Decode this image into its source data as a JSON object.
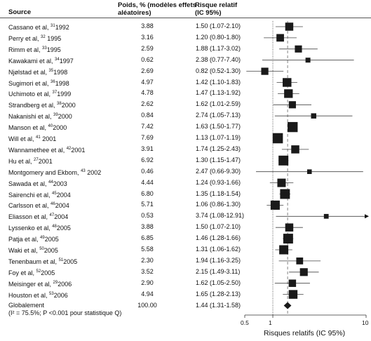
{
  "headers": {
    "source": "Source",
    "weight": "Poids, % (modèles effets aléatoires)",
    "rr": "Risque relatif (IC 95%)"
  },
  "studies": [
    {
      "author": "Cassano et al, ",
      "ref": "31",
      "year": "1992",
      "weight": "3.88",
      "rr_text": "1.50 (1.07-2.10)",
      "rr": 1.5,
      "lo": 1.07,
      "hi": 2.1
    },
    {
      "author": "Perry et al, ",
      "ref": "32",
      "year": " 1995",
      "weight": "3.16",
      "rr_text": "1.20 (0.80-1.80)",
      "rr": 1.2,
      "lo": 0.8,
      "hi": 1.8
    },
    {
      "author": "Rimm et al, ",
      "ref": "33",
      "year": "1995",
      "weight": "2.59",
      "rr_text": "1.88 (1.17-3.02)",
      "rr": 1.88,
      "lo": 1.17,
      "hi": 3.02
    },
    {
      "author": "Kawakami et al, ",
      "ref": "34",
      "year": "1997",
      "weight": "0.62",
      "rr_text": "2.38 (0.77-7.40)",
      "rr": 2.38,
      "lo": 0.77,
      "hi": 7.4
    },
    {
      "author": "Njølstad et al, ",
      "ref": "35",
      "year": "1998",
      "weight": "2.69",
      "rr_text": "0.82 (0.52-1.30)",
      "rr": 0.82,
      "lo": 0.52,
      "hi": 1.3
    },
    {
      "author": "Sugimori et al, ",
      "ref": "36",
      "year": "1998",
      "weight": "4.97",
      "rr_text": "1.42 (1.10-1.83)",
      "rr": 1.42,
      "lo": 1.1,
      "hi": 1.83
    },
    {
      "author": "Uchimoto et al, ",
      "ref": "37",
      "year": "1999",
      "weight": "4.78",
      "rr_text": "1.47 (1.13-1.92)",
      "rr": 1.47,
      "lo": 1.13,
      "hi": 1.92
    },
    {
      "author": "Strandberg et al, ",
      "ref": "38",
      "year": "2000",
      "weight": "2.62",
      "rr_text": "1.62 (1.01-2.59)",
      "rr": 1.62,
      "lo": 1.01,
      "hi": 2.59
    },
    {
      "author": "Nakanishi et al, ",
      "ref": "39",
      "year": "2000",
      "weight": "0.84",
      "rr_text": "2.74 (1.05-7.13)",
      "rr": 2.74,
      "lo": 1.05,
      "hi": 7.13
    },
    {
      "author": "Manson et al, ",
      "ref": "40",
      "year": "2000",
      "weight": "7.42",
      "rr_text": "1.63 (1.50-1.77)",
      "rr": 1.63,
      "lo": 1.5,
      "hi": 1.77
    },
    {
      "author": "Will et al, ",
      "ref": "41",
      "year": " 2001",
      "weight": "7.69",
      "rr_text": "1.13 (1.07-1.19)",
      "rr": 1.13,
      "lo": 1.07,
      "hi": 1.19
    },
    {
      "author": "Wannamethee et al, ",
      "ref": "42",
      "year": "2001",
      "weight": "3.91",
      "rr_text": "1.74 (1.25-2.43)",
      "rr": 1.74,
      "lo": 1.25,
      "hi": 2.43
    },
    {
      "author": "Hu et al, ",
      "ref": "27",
      "year": "2001",
      "weight": "6.92",
      "rr_text": "1.30 (1.15-1.47)",
      "rr": 1.3,
      "lo": 1.15,
      "hi": 1.47
    },
    {
      "author": "Montgomery and Ekbom, ",
      "ref": "43",
      "year": " 2002",
      "weight": "0.46",
      "rr_text": "2.47 (0.66-9.30)",
      "rr": 2.47,
      "lo": 0.66,
      "hi": 9.3
    },
    {
      "author": "Sawada et al, ",
      "ref": "44",
      "year": "2003",
      "weight": "4.44",
      "rr_text": "1.24 (0.93-1.66)",
      "rr": 1.24,
      "lo": 0.93,
      "hi": 1.66
    },
    {
      "author": "Sairenchi et al, ",
      "ref": "45",
      "year": "2004",
      "weight": "6.80",
      "rr_text": "1.35 (1.18-1.54)",
      "rr": 1.35,
      "lo": 1.18,
      "hi": 1.54
    },
    {
      "author": "Carlsson et al, ",
      "ref": "46",
      "year": "2004",
      "weight": "5.71",
      "rr_text": "1.06 (0.86-1.30)",
      "rr": 1.06,
      "lo": 0.86,
      "hi": 1.3
    },
    {
      "author": "Eliasson et al, ",
      "ref": "47",
      "year": "2004",
      "weight": "0.53",
      "rr_text": "3.74 (1.08-12.91)",
      "rr": 3.74,
      "lo": 1.08,
      "hi": 12.91
    },
    {
      "author": "Lyssenko et al, ",
      "ref": "48",
      "year": "2005",
      "weight": "3.88",
      "rr_text": "1.50 (1.07-2.10)",
      "rr": 1.5,
      "lo": 1.07,
      "hi": 2.1
    },
    {
      "author": "Patja et al, ",
      "ref": "49",
      "year": "2005",
      "weight": "6.85",
      "rr_text": "1.46 (1.28-1.66)",
      "rr": 1.46,
      "lo": 1.28,
      "hi": 1.66
    },
    {
      "author": "Waki et al, ",
      "ref": "50",
      "year": "2005",
      "weight": "5.58",
      "rr_text": "1.31 (1.06-1.62)",
      "rr": 1.31,
      "lo": 1.06,
      "hi": 1.62
    },
    {
      "author": "Tenenbaum et al, ",
      "ref": "51",
      "year": "2005",
      "weight": "2.30",
      "rr_text": "1.94 (1.16-3.25)",
      "rr": 1.94,
      "lo": 1.16,
      "hi": 3.25
    },
    {
      "author": "Foy et al, ",
      "ref": "52",
      "year": "2005",
      "weight": "3.52",
      "rr_text": "2.15 (1.49-3.11)",
      "rr": 2.15,
      "lo": 1.49,
      "hi": 3.11
    },
    {
      "author": "Meisinger et al, ",
      "ref": "29",
      "year": "2006",
      "weight": "2.90",
      "rr_text": "1.62 (1.05-2.50)",
      "rr": 1.62,
      "lo": 1.05,
      "hi": 2.5
    },
    {
      "author": "Houston et al, ",
      "ref": "53",
      "year": "2006",
      "weight": "4.94",
      "rr_text": "1.65 (1.28-2.13)",
      "rr": 1.65,
      "lo": 1.28,
      "hi": 2.13
    }
  ],
  "overall": {
    "label": "Globalement",
    "weight": "100.00",
    "rr_text": "1.44 (1.31-1.58)",
    "rr": 1.44,
    "lo": 1.31,
    "hi": 1.58
  },
  "heterogeneity": "(I² = 75.5%;   P <0.001 pour statistique Q)",
  "chart_data": {
    "type": "forest",
    "x_scale": "log",
    "x_range": [
      0.5,
      10
    ],
    "x_ticks": [
      "0.5",
      "1",
      "10"
    ],
    "xlabel": "Risques relatifs (IC 95%)",
    "reference_line": 1,
    "pooled_line": 1.44
  }
}
